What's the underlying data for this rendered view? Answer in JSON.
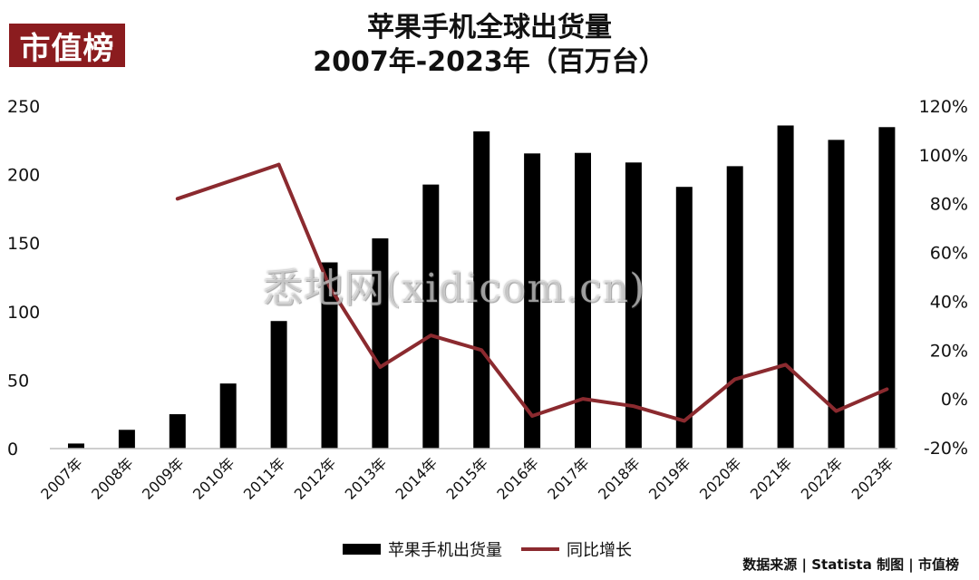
{
  "logo": {
    "text": "市值榜"
  },
  "title": {
    "line1": "苹果手机全球出货量",
    "line2": "2007年-2023年（百万台）"
  },
  "watermark": "悉地网(xidicom.cn)",
  "legend": {
    "bar_label": "苹果手机出货量",
    "line_label": "同比增长"
  },
  "source": "数据来源 | Statista 制图 | 市值榜",
  "colors": {
    "bar": "#000000",
    "line": "#8b2a2f",
    "logo_bg": "#8b1c1f"
  },
  "chart_data": {
    "type": "bar",
    "categories": [
      "2007年",
      "2008年",
      "2009年",
      "2010年",
      "2011年",
      "2012年",
      "2013年",
      "2014年",
      "2015年",
      "2016年",
      "2017年",
      "2018年",
      "2019年",
      "2020年",
      "2021年",
      "2022年",
      "2023年"
    ],
    "series": [
      {
        "name": "苹果手机出货量",
        "type": "bar",
        "axis": "left",
        "values": [
          3.7,
          13.7,
          25.1,
          47.5,
          93.1,
          135.9,
          153.4,
          192.7,
          231.5,
          215.4,
          215.8,
          208.8,
          191.0,
          206.1,
          235.8,
          225.3,
          234.6
        ]
      },
      {
        "name": "同比增长",
        "type": "line",
        "axis": "right",
        "values": [
          null,
          null,
          82,
          null,
          96,
          46,
          13,
          26,
          20,
          -7,
          0,
          -3,
          -9,
          8,
          14,
          -5,
          4
        ]
      }
    ],
    "left_axis": {
      "ylim": [
        0,
        250
      ],
      "ticks": [
        "0",
        "50",
        "100",
        "150",
        "200",
        "250"
      ]
    },
    "right_axis": {
      "ylim": [
        -20,
        120
      ],
      "ticks": [
        "-20%",
        "0%",
        "20%",
        "40%",
        "60%",
        "80%",
        "100%",
        "120%"
      ]
    },
    "grid": false,
    "legend_position": "bottom"
  }
}
